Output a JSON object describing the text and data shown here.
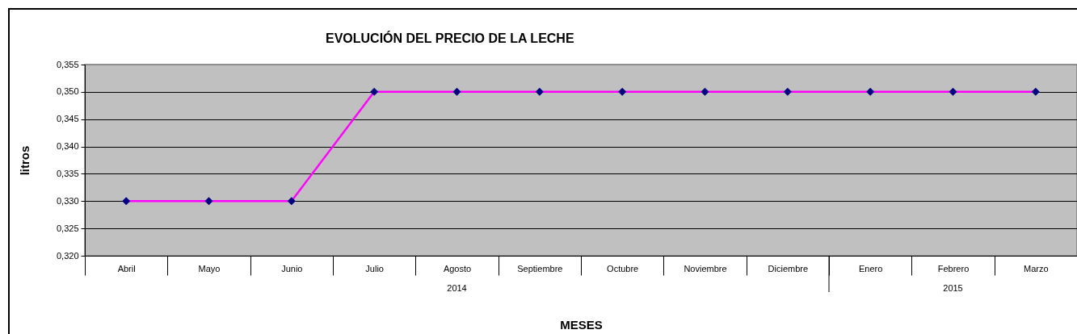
{
  "chart_data": {
    "type": "line",
    "title": "EVOLUCIÓN DEL PRECIO DE LA LECHE",
    "xlabel": "MESES",
    "ylabel": "litros",
    "categories": [
      "Abril",
      "Mayo",
      "Junio",
      "Julio",
      "Agosto",
      "Septiembre",
      "Octubre",
      "Noviembre",
      "Diciembre",
      "Enero",
      "Febrero",
      "Marzo"
    ],
    "series": [
      {
        "color": "#ff00ff",
        "colors": [
          "#000080",
          "#000080",
          "#000080",
          "#000080",
          "#000080",
          "#000080",
          "#000080",
          "#000080",
          "#000080",
          "#000080",
          "#000080",
          "#000080"
        ],
        "values": [
          0.33,
          0.33,
          0.33,
          0.35,
          0.35,
          0.35,
          0.35,
          0.35,
          0.35,
          0.35,
          0.35,
          0.35
        ]
      }
    ],
    "ylim": [
      0.32,
      0.355
    ],
    "yticks": [
      {
        "value": 0.32,
        "label": "0,320"
      },
      {
        "value": 0.325,
        "label": "0,325"
      },
      {
        "value": 0.33,
        "label": "0,330"
      },
      {
        "value": 0.335,
        "label": "0,335"
      },
      {
        "value": 0.34,
        "label": "0,340"
      },
      {
        "value": 0.345,
        "label": "0,345"
      },
      {
        "value": 0.35,
        "label": "0,350"
      },
      {
        "value": 0.355,
        "label": "0,355"
      }
    ],
    "grid": "y",
    "marker": "diamond",
    "line_style": "solid",
    "annotations": [
      "2014",
      "2015"
    ]
  }
}
